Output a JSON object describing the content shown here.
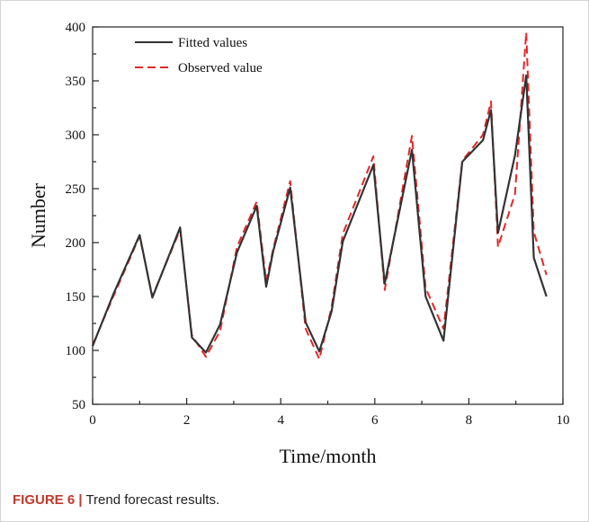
{
  "caption": {
    "prefix": "FIGURE 6 |",
    "text": "Trend forecast results."
  },
  "chart_data": {
    "type": "line",
    "title": "",
    "xlabel": "Time/month",
    "ylabel": "Number",
    "xlim": [
      0,
      10
    ],
    "ylim": [
      50,
      400
    ],
    "x_ticks": [
      0,
      2,
      4,
      6,
      8,
      10
    ],
    "y_ticks": [
      50,
      100,
      150,
      200,
      250,
      300,
      350,
      400
    ],
    "grid": false,
    "legend_position": "top-left",
    "series": [
      {
        "name": "Fitted values",
        "color": "#333333",
        "style": "solid",
        "points": [
          [
            0,
            104
          ],
          [
            0.44,
            152
          ],
          [
            1.0,
            207
          ],
          [
            1.27,
            149
          ],
          [
            1.86,
            214
          ],
          [
            2.11,
            112
          ],
          [
            2.41,
            98
          ],
          [
            2.71,
            124
          ],
          [
            3.07,
            191
          ],
          [
            3.49,
            234
          ],
          [
            3.69,
            159
          ],
          [
            3.84,
            192
          ],
          [
            4.2,
            251
          ],
          [
            4.53,
            126
          ],
          [
            4.82,
            99
          ],
          [
            5.08,
            136
          ],
          [
            5.32,
            201
          ],
          [
            5.97,
            272
          ],
          [
            6.21,
            162
          ],
          [
            6.79,
            286
          ],
          [
            7.08,
            150
          ],
          [
            7.46,
            109
          ],
          [
            7.86,
            275
          ],
          [
            8.3,
            295
          ],
          [
            8.47,
            323
          ],
          [
            8.62,
            209
          ],
          [
            8.98,
            281
          ],
          [
            9.22,
            355
          ],
          [
            9.38,
            186
          ],
          [
            9.65,
            150
          ]
        ]
      },
      {
        "name": "Observed value",
        "color": "#e32727",
        "style": "dashed",
        "points": [
          [
            0,
            105
          ],
          [
            0.44,
            150
          ],
          [
            1.0,
            206
          ],
          [
            1.27,
            150
          ],
          [
            1.86,
            212
          ],
          [
            2.11,
            114
          ],
          [
            2.41,
            94
          ],
          [
            2.71,
            118
          ],
          [
            3.07,
            196
          ],
          [
            3.49,
            238
          ],
          [
            3.69,
            164
          ],
          [
            3.84,
            194
          ],
          [
            4.2,
            257
          ],
          [
            4.53,
            120
          ],
          [
            4.82,
            92
          ],
          [
            5.08,
            140
          ],
          [
            5.32,
            208
          ],
          [
            5.97,
            280
          ],
          [
            6.21,
            156
          ],
          [
            6.79,
            299
          ],
          [
            7.08,
            158
          ],
          [
            7.46,
            120
          ],
          [
            7.86,
            276
          ],
          [
            8.3,
            300
          ],
          [
            8.47,
            331
          ],
          [
            8.62,
            196
          ],
          [
            8.98,
            245
          ],
          [
            9.22,
            395
          ],
          [
            9.38,
            210
          ],
          [
            9.65,
            170
          ]
        ]
      }
    ]
  }
}
